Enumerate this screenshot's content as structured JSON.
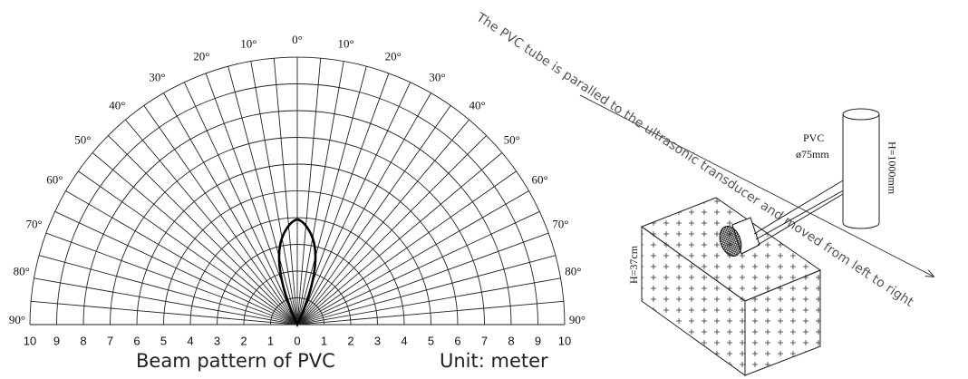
{
  "polar": {
    "angle_labels": [
      "90°",
      "80°",
      "70°",
      "60°",
      "50°",
      "40°",
      "30°",
      "20°",
      "10°",
      "0°",
      "10°",
      "20°",
      "30°",
      "40°",
      "50°",
      "60°",
      "70°",
      "80°",
      "90°"
    ],
    "distance_labels": [
      "10",
      "9",
      "8",
      "7",
      "6",
      "5",
      "4",
      "3",
      "2",
      "1",
      "0",
      "1",
      "2",
      "3",
      "4",
      "5",
      "6",
      "7",
      "8",
      "9",
      "10"
    ],
    "caption": "Beam pattern of PVC",
    "unit": "Unit: meter"
  },
  "setup": {
    "note": "The PVC tube is paralled to the ultrasonic transducer and moved from left to right",
    "tube_label": "PVC",
    "tube_diameter": "ø75mm",
    "tube_height": "H=1000mm",
    "box_height": "H=37cm"
  }
}
